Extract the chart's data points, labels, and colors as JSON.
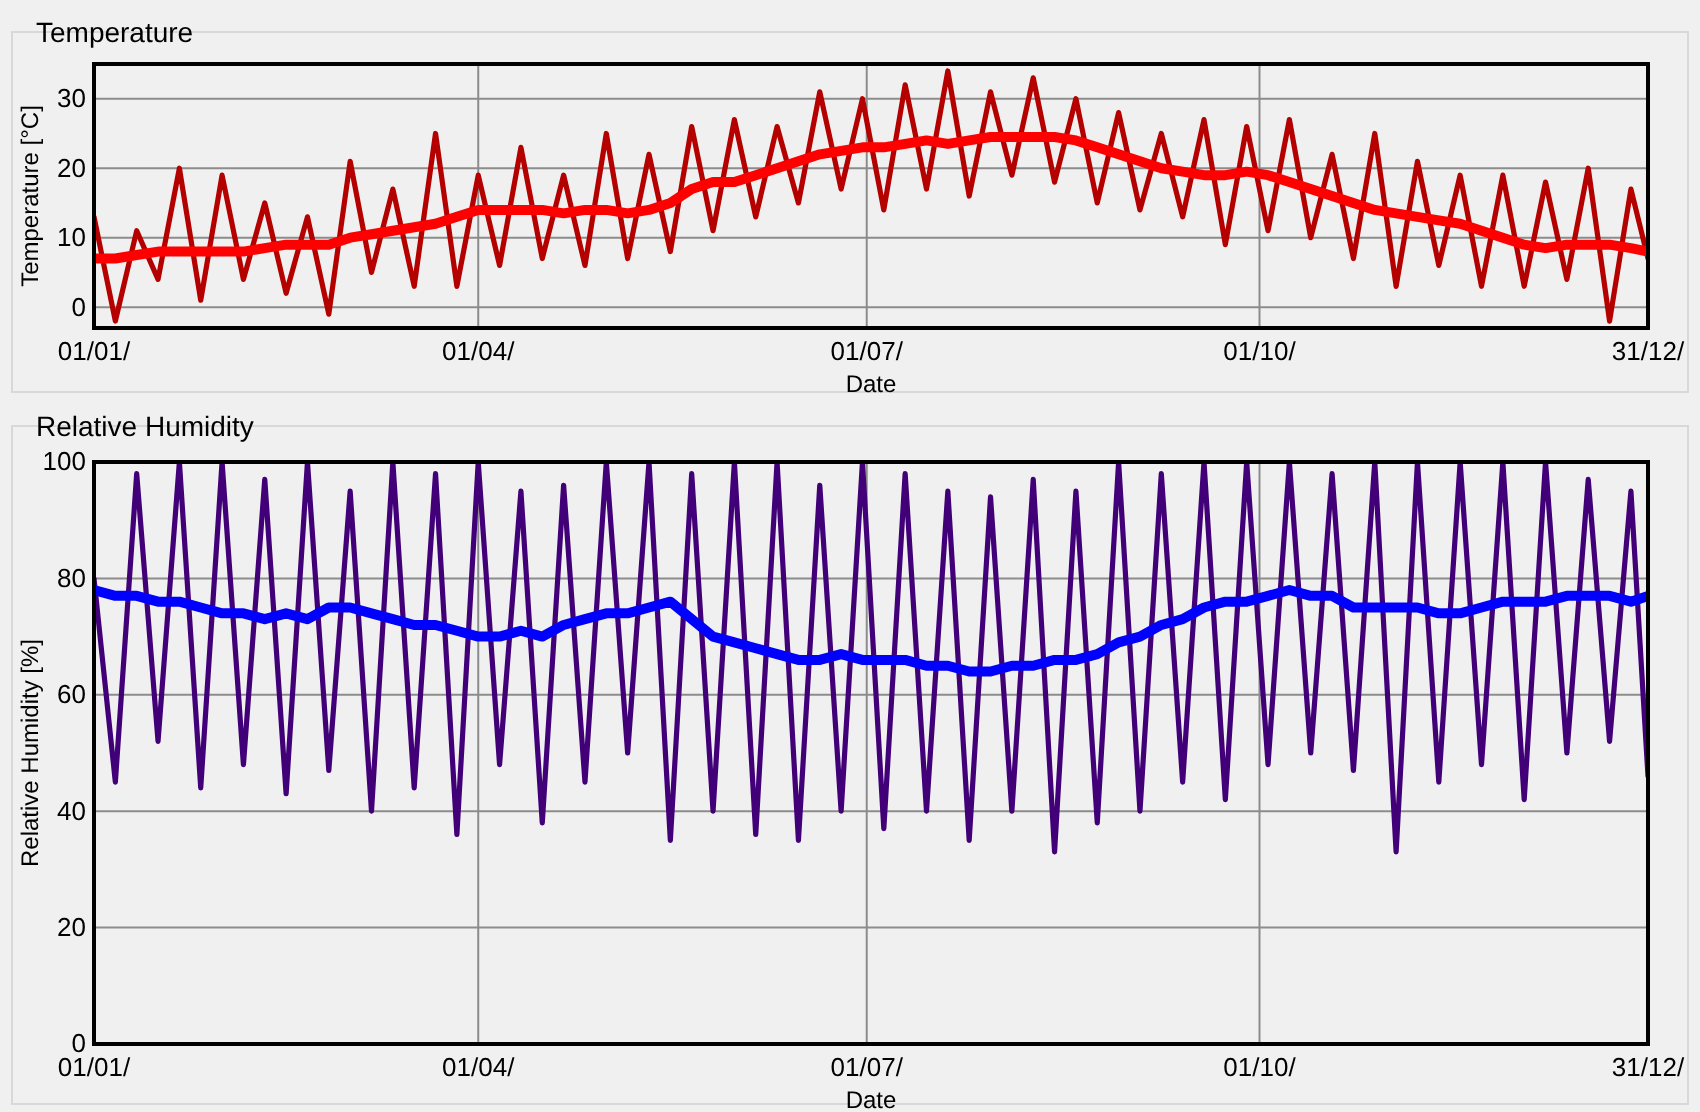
{
  "chart_data": [
    {
      "type": "line",
      "title": "Temperature",
      "xlabel": "Date",
      "ylabel": "Temperature [°C]",
      "grid": true,
      "line_style": "solid",
      "x": [
        "--01-01",
        "--01-06",
        "--01-11",
        "--01-16",
        "--01-21",
        "--01-26",
        "--01-31",
        "--02-05",
        "--02-10",
        "--02-15",
        "--02-20",
        "--02-25",
        "--03-02",
        "--03-07",
        "--03-12",
        "--03-17",
        "--03-22",
        "--03-27",
        "--04-01",
        "--04-06",
        "--04-11",
        "--04-16",
        "--04-21",
        "--04-26",
        "--05-01",
        "--05-06",
        "--05-11",
        "--05-16",
        "--05-21",
        "--05-26",
        "--05-31",
        "--06-05",
        "--06-10",
        "--06-15",
        "--06-20",
        "--06-25",
        "--06-30",
        "--07-05",
        "--07-10",
        "--07-15",
        "--07-20",
        "--07-25",
        "--07-30",
        "--08-04",
        "--08-09",
        "--08-14",
        "--08-19",
        "--08-24",
        "--08-29",
        "--09-03",
        "--09-08",
        "--09-13",
        "--09-18",
        "--09-23",
        "--09-28",
        "--10-03",
        "--10-08",
        "--10-13",
        "--10-18",
        "--10-23",
        "--10-28",
        "--11-02",
        "--11-07",
        "--11-12",
        "--11-17",
        "--11-22",
        "--11-27",
        "--12-02",
        "--12-07",
        "--12-12",
        "--12-17",
        "--12-22",
        "--12-27",
        "--12-31"
      ],
      "xlim": [
        "--01-01",
        "--12-31"
      ],
      "xticks": [
        {
          "value": "--01-01",
          "label": "01/01/"
        },
        {
          "value": "--04-01",
          "label": "01/04/"
        },
        {
          "value": "--07-01",
          "label": "01/07/"
        },
        {
          "value": "--10-01",
          "label": "01/10/"
        },
        {
          "value": "--12-31",
          "label": "31/12/"
        }
      ],
      "ylim": [
        -3,
        35
      ],
      "yticks": [
        0,
        10,
        20,
        30
      ],
      "series": [
        {
          "color": "#b50000",
          "values": [
            13,
            -2,
            11,
            4,
            20,
            1,
            19,
            4,
            15,
            2,
            13,
            -1,
            21,
            5,
            17,
            3,
            25,
            3,
            19,
            6,
            23,
            7,
            19,
            6,
            25,
            7,
            22,
            8,
            26,
            11,
            27,
            13,
            26,
            15,
            31,
            17,
            30,
            14,
            32,
            17,
            34,
            16,
            31,
            19,
            33,
            18,
            30,
            15,
            28,
            14,
            25,
            13,
            27,
            9,
            26,
            11,
            27,
            10,
            22,
            7,
            25,
            3,
            21,
            6,
            19,
            3,
            19,
            3,
            18,
            4,
            20,
            -2,
            17,
            7
          ]
        },
        {
          "color": "#ff0000",
          "values": [
            7,
            7,
            7.5,
            8,
            8,
            8,
            8,
            8,
            8.5,
            9,
            9,
            9,
            10,
            10.5,
            11,
            11.5,
            12,
            13,
            14,
            14,
            14,
            14,
            13.5,
            14,
            14,
            13.5,
            14,
            15,
            17,
            18,
            18,
            19,
            20,
            21,
            22,
            22.5,
            23,
            23,
            23.5,
            24,
            23.5,
            24,
            24.5,
            24.5,
            24.5,
            24.5,
            24,
            23,
            22,
            21,
            20,
            19.5,
            19,
            19,
            19.5,
            19,
            18,
            17,
            16,
            15,
            14,
            13.5,
            13,
            12.5,
            12,
            11,
            10,
            9,
            8.5,
            9,
            9,
            9,
            8.5,
            8
          ]
        }
      ]
    },
    {
      "type": "line",
      "title": "Relative Humidity",
      "xlabel": "Date",
      "ylabel": "Relative Humidity [%]",
      "grid": true,
      "line_style": "solid",
      "x": [
        "--01-01",
        "--01-06",
        "--01-11",
        "--01-16",
        "--01-21",
        "--01-26",
        "--01-31",
        "--02-05",
        "--02-10",
        "--02-15",
        "--02-20",
        "--02-25",
        "--03-02",
        "--03-07",
        "--03-12",
        "--03-17",
        "--03-22",
        "--03-27",
        "--04-01",
        "--04-06",
        "--04-11",
        "--04-16",
        "--04-21",
        "--04-26",
        "--05-01",
        "--05-06",
        "--05-11",
        "--05-16",
        "--05-21",
        "--05-26",
        "--05-31",
        "--06-05",
        "--06-10",
        "--06-15",
        "--06-20",
        "--06-25",
        "--06-30",
        "--07-05",
        "--07-10",
        "--07-15",
        "--07-20",
        "--07-25",
        "--07-30",
        "--08-04",
        "--08-09",
        "--08-14",
        "--08-19",
        "--08-24",
        "--08-29",
        "--09-03",
        "--09-08",
        "--09-13",
        "--09-18",
        "--09-23",
        "--09-28",
        "--10-03",
        "--10-08",
        "--10-13",
        "--10-18",
        "--10-23",
        "--10-28",
        "--11-02",
        "--11-07",
        "--11-12",
        "--11-17",
        "--11-22",
        "--11-27",
        "--12-02",
        "--12-07",
        "--12-12",
        "--12-17",
        "--12-22",
        "--12-27",
        "--12-31"
      ],
      "xlim": [
        "--01-01",
        "--12-31"
      ],
      "xticks": [
        {
          "value": "--01-01",
          "label": "01/01/"
        },
        {
          "value": "--04-01",
          "label": "01/04/"
        },
        {
          "value": "--07-01",
          "label": "01/07/"
        },
        {
          "value": "--10-01",
          "label": "01/10/"
        },
        {
          "value": "--12-31",
          "label": "31/12/"
        }
      ],
      "ylim": [
        0,
        100
      ],
      "yticks": [
        0,
        20,
        40,
        60,
        80,
        100
      ],
      "series": [
        {
          "color": "#420078",
          "values": [
            80,
            45,
            98,
            52,
            100,
            44,
            100,
            48,
            97,
            43,
            100,
            47,
            95,
            40,
            100,
            44,
            98,
            36,
            100,
            48,
            95,
            38,
            96,
            45,
            100,
            50,
            100,
            35,
            98,
            40,
            100,
            36,
            100,
            35,
            96,
            40,
            100,
            37,
            98,
            40,
            95,
            35,
            94,
            40,
            97,
            33,
            95,
            38,
            100,
            40,
            98,
            45,
            100,
            42,
            100,
            48,
            100,
            50,
            98,
            47,
            100,
            33,
            100,
            45,
            100,
            48,
            100,
            42,
            100,
            50,
            97,
            52,
            95,
            46
          ]
        },
        {
          "color": "#0000ff",
          "values": [
            78,
            77,
            77,
            76,
            76,
            75,
            74,
            74,
            73,
            74,
            73,
            75,
            75,
            74,
            73,
            72,
            72,
            71,
            70,
            70,
            71,
            70,
            72,
            73,
            74,
            74,
            75,
            76,
            73,
            70,
            69,
            68,
            67,
            66,
            66,
            67,
            66,
            66,
            66,
            65,
            65,
            64,
            64,
            65,
            65,
            66,
            66,
            67,
            69,
            70,
            72,
            73,
            75,
            76,
            76,
            77,
            78,
            77,
            77,
            75,
            75,
            75,
            75,
            74,
            74,
            75,
            76,
            76,
            76,
            77,
            77,
            77,
            76,
            77
          ]
        }
      ]
    }
  ]
}
